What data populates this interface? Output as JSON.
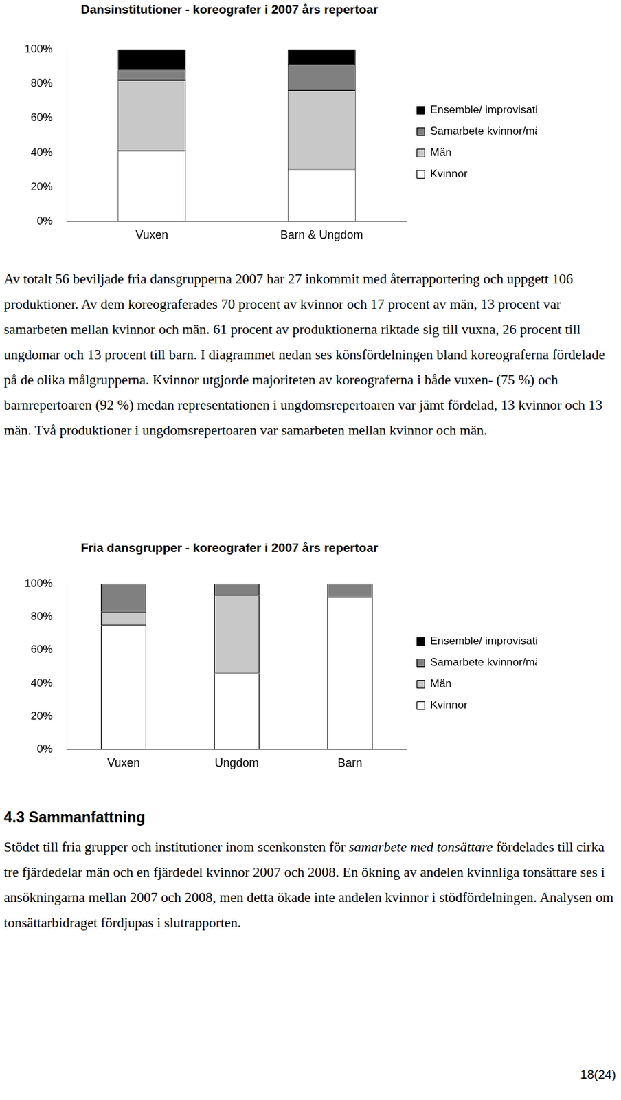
{
  "chart_data": [
    {
      "type": "bar",
      "stacked": true,
      "title": "Dansinstitutioner - koreografer i 2007 års repertoar",
      "categories": [
        "Vuxen",
        "Barn & Ungdom"
      ],
      "series": [
        {
          "name": "Kvinnor",
          "color": "#ffffff",
          "values": [
            41,
            30
          ]
        },
        {
          "name": "Män",
          "color": "#c8c8c8",
          "values": [
            41,
            46
          ]
        },
        {
          "name": "Samarbete kvinnor/män",
          "color": "#808080",
          "values": [
            6,
            15
          ]
        },
        {
          "name": "Ensemble/ improvisation",
          "color": "#000000",
          "values": [
            12,
            9
          ]
        }
      ],
      "ylim": [
        0,
        100
      ],
      "yticks": [
        {
          "value": 0,
          "label": "0%"
        },
        {
          "value": 20,
          "label": "20%"
        },
        {
          "value": 40,
          "label": "40%"
        },
        {
          "value": 60,
          "label": "60%"
        },
        {
          "value": 80,
          "label": "80%"
        },
        {
          "value": 100,
          "label": "100%"
        }
      ],
      "grid": false,
      "legend": "right"
    },
    {
      "type": "bar",
      "stacked": true,
      "title": "Fria dansgrupper - koreografer i 2007 års repertoar",
      "categories": [
        "Vuxen",
        "Ungdom",
        "Barn"
      ],
      "series": [
        {
          "name": "Kvinnor",
          "color": "#ffffff",
          "values": [
            75,
            46,
            92
          ]
        },
        {
          "name": "Män",
          "color": "#c8c8c8",
          "values": [
            8,
            47,
            0
          ]
        },
        {
          "name": "Samarbete kvinnor/män",
          "color": "#808080",
          "values": [
            17,
            7,
            8
          ]
        },
        {
          "name": "Ensemble/ improvisation",
          "color": "#000000",
          "values": [
            0,
            0,
            0
          ]
        }
      ],
      "ylim": [
        0,
        100
      ],
      "yticks": [
        {
          "value": 0,
          "label": "0%"
        },
        {
          "value": 20,
          "label": "20%"
        },
        {
          "value": 40,
          "label": "40%"
        },
        {
          "value": 60,
          "label": "60%"
        },
        {
          "value": 80,
          "label": "80%"
        },
        {
          "value": 100,
          "label": "100%"
        }
      ],
      "grid": false,
      "legend": "right"
    }
  ],
  "document": {
    "paragraph": "Av totalt 56 beviljade fria dansgrupperna 2007 har 27 inkommit med återrapportering och uppgett 106 produktioner. Av dem koreograferades 70 procent av kvinnor och 17 procent av män, 13 procent var samarbeten mellan kvinnor och män. 61 procent av produktionerna riktade sig till vuxna, 26 procent till ungdomar och 13 procent till barn. I diagrammet nedan ses könsfördelningen bland koreograferna fördelade på de olika målgrupperna. Kvinnor utgjorde majoriteten av koreograferna i både vuxen- (75 %) och barnrepertoaren (92 %) medan representationen i ungdomsrepertoaren var jämt fördelad, 13 kvinnor och 13 män. Två produktioner i ungdomsrepertoaren var samarbeten mellan kvinnor och män.",
    "heading": "4.3 Sammanfattning",
    "summary": {
      "before": "Stödet till fria grupper och institutioner inom scenkonsten för ",
      "emphasis": "samarbete med tonsättare",
      "after": " fördelades till cirka tre fjärdedelar män och en fjärdedel kvinnor 2007 och 2008. En ökning av andelen kvinnliga tonsättare ses i ansökningarna mellan 2007 och 2008, men detta ökade inte andelen kvinnor i stödfördelningen. Analysen om tonsättarbidraget fördjupas i slutrapporten."
    },
    "page_number": "18(24)"
  }
}
